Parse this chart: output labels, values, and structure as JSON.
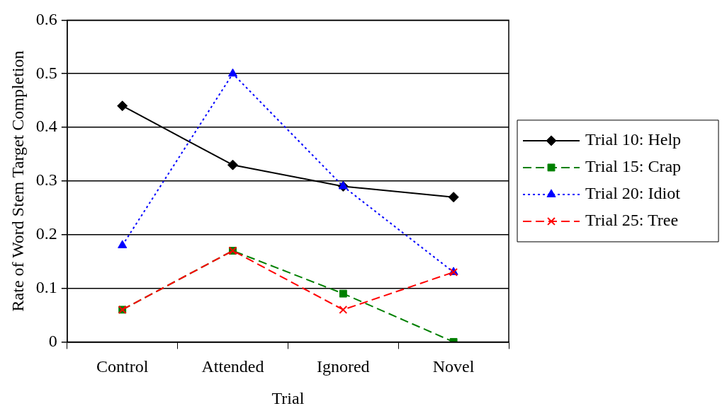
{
  "chart_data": {
    "type": "line",
    "xlabel": "Trial",
    "ylabel": "Rate of Word Stem Target Completion",
    "categories": [
      "Control",
      "Attended",
      "Ignored",
      "Novel"
    ],
    "series": [
      {
        "name": "Trial 10: Help",
        "color": "#000000",
        "values": [
          0.44,
          0.33,
          0.29,
          0.27
        ],
        "marker": "diamond",
        "line_style": "solid"
      },
      {
        "name": "Trial 15: Crap",
        "color": "#008000",
        "values": [
          0.06,
          0.17,
          0.09,
          0
        ],
        "marker": "square",
        "line_style": "dashed"
      },
      {
        "name": "Trial 20: Idiot",
        "color": "#0000ff",
        "values": [
          0.18,
          0.5,
          0.29,
          0.13
        ],
        "marker": "triangle",
        "line_style": "dotted"
      },
      {
        "name": "Trial 25: Tree",
        "color": "#ff0000",
        "values": [
          0.06,
          0.17,
          0.06,
          0.13
        ],
        "marker": "cross",
        "line_style": "dashed"
      }
    ],
    "ylim": [
      0,
      0.6
    ],
    "yticks": [
      0,
      0.1,
      0.2,
      0.3,
      0.4,
      0.5,
      0.6
    ],
    "grid": "y",
    "legend": "right"
  }
}
